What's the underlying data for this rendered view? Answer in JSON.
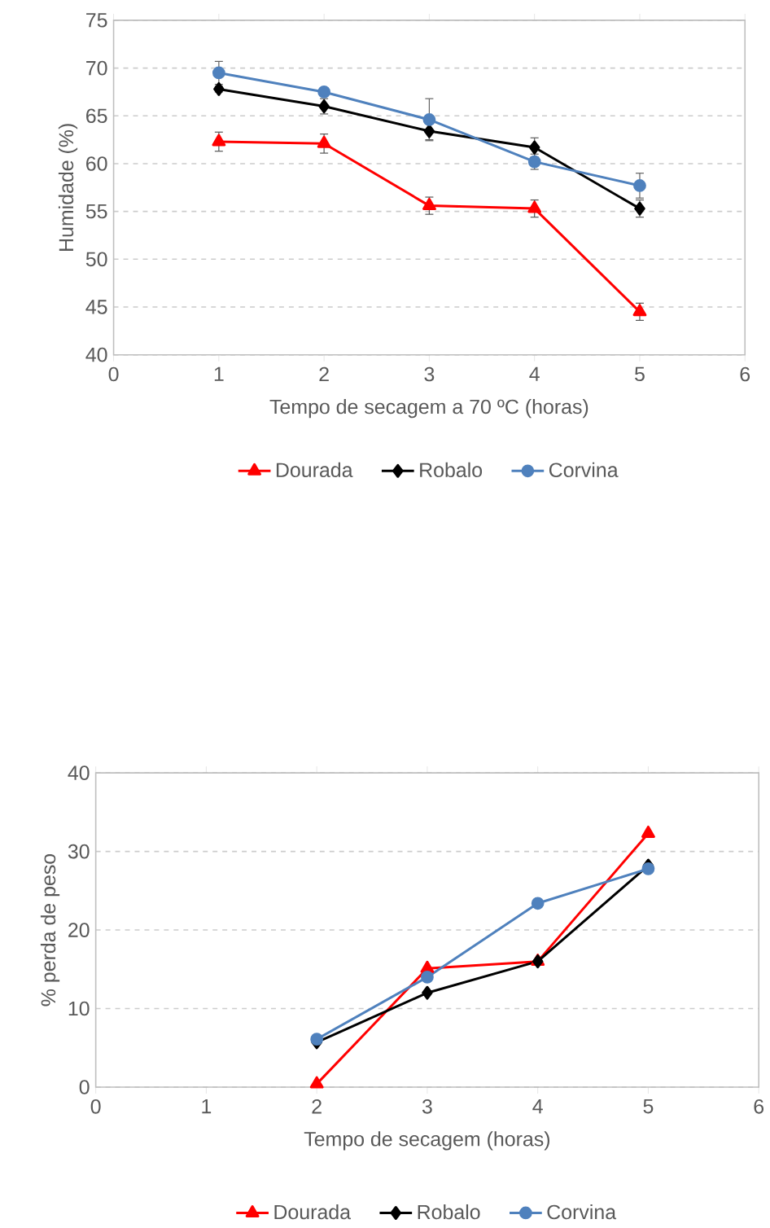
{
  "chart_data": [
    {
      "type": "line",
      "xlabel": "Tempo de secagem a 70 ºC (horas)",
      "ylabel": "Humidade (%)",
      "x": [
        1,
        2,
        3,
        4,
        5
      ],
      "xlim": [
        0,
        6
      ],
      "xticks": [
        0,
        1,
        2,
        3,
        4,
        5,
        6
      ],
      "ylim": [
        40,
        75
      ],
      "yticks": [
        40,
        45,
        50,
        55,
        60,
        65,
        70,
        75
      ],
      "grid": "y",
      "legend": "bottom",
      "series": [
        {
          "name": "Dourada",
          "color": "#ff0000",
          "marker": "triangle",
          "values": [
            62.3,
            62.1,
            55.6,
            55.3,
            44.5
          ],
          "errors": [
            1.0,
            1.0,
            0.9,
            0.9,
            0.9
          ]
        },
        {
          "name": "Robalo",
          "color": "#000000",
          "marker": "diamond",
          "values": [
            67.8,
            66.0,
            63.4,
            61.7,
            55.3
          ],
          "errors": [
            0.3,
            0.8,
            0.9,
            1.0,
            0.9
          ]
        },
        {
          "name": "Corvina",
          "color": "#4f81bd",
          "marker": "circle",
          "values": [
            69.5,
            67.5,
            64.6,
            60.2,
            57.7
          ],
          "errors": [
            1.2,
            null,
            2.2,
            0.8,
            1.3
          ]
        }
      ]
    },
    {
      "type": "line",
      "xlabel": "Tempo de secagem (horas)",
      "ylabel": "% perda de peso",
      "x": [
        2,
        3,
        4,
        5
      ],
      "xlim": [
        0,
        6
      ],
      "xticks": [
        0,
        1,
        2,
        3,
        4,
        5,
        6
      ],
      "ylim": [
        0,
        40
      ],
      "yticks": [
        0,
        10,
        20,
        30,
        40
      ],
      "grid": "y",
      "legend": "bottom",
      "series": [
        {
          "name": "Dourada",
          "color": "#ff0000",
          "marker": "triangle",
          "values": [
            0.4,
            15.1,
            16.0,
            32.3
          ]
        },
        {
          "name": "Robalo",
          "color": "#000000",
          "marker": "diamond",
          "values": [
            5.7,
            12.0,
            16.0,
            28.2
          ]
        },
        {
          "name": "Corvina",
          "color": "#4f81bd",
          "marker": "circle",
          "values": [
            6.1,
            14.0,
            23.4,
            27.8
          ]
        }
      ]
    }
  ]
}
